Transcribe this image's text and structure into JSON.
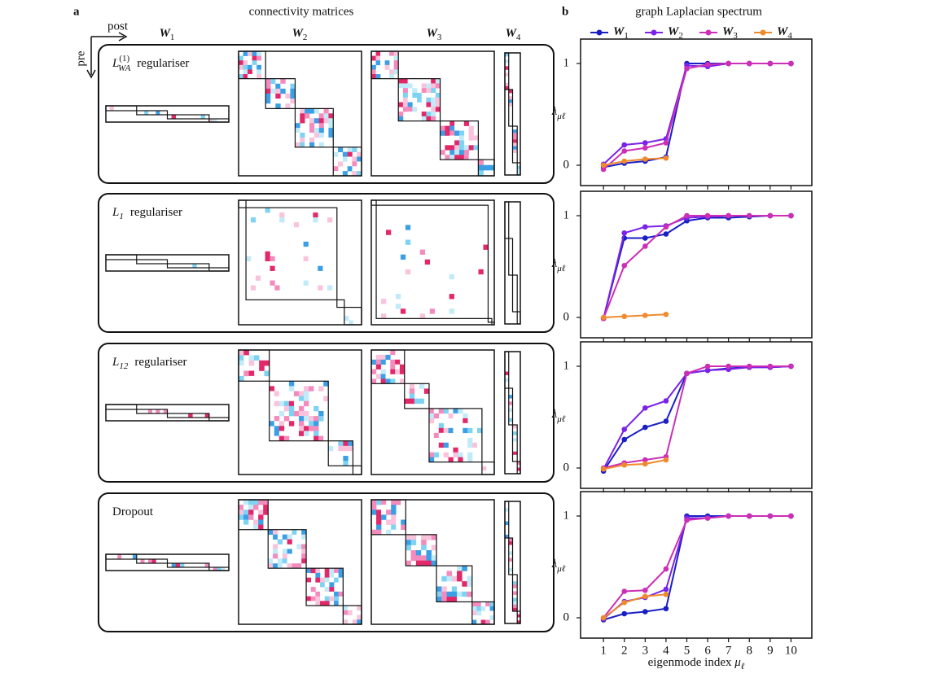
{
  "panel_a": {
    "label": "a",
    "title": "connectivity matrices",
    "post": "post",
    "pre": "pre",
    "columns": [
      "W1",
      "W2",
      "W3",
      "W4"
    ],
    "rows": [
      {
        "symbol": "L",
        "sup": "(1)",
        "sub": "WA",
        "text": "regulariser"
      },
      {
        "symbol": "L",
        "sub": "1",
        "text": "regulariser"
      },
      {
        "symbol": "L",
        "sub": "12",
        "text": "regulariser"
      },
      {
        "text": "Dropout"
      }
    ]
  },
  "chart_data": {
    "type": "line",
    "label": "b",
    "title": "graph Laplacian spectrum",
    "xlabel": "eigenmode index μℓ",
    "ylabel": "λμℓ",
    "x": [
      1,
      2,
      3,
      4,
      5,
      6,
      7,
      8,
      9,
      10
    ],
    "xlim": [
      -0.1,
      11
    ],
    "xticks": [
      1,
      2,
      3,
      4,
      5,
      6,
      7,
      8,
      9,
      10
    ],
    "ylim": [
      -0.2,
      1.24
    ],
    "yticks": [
      0,
      1
    ],
    "series": [
      {
        "name": "W1",
        "color": "#1a1fc4",
        "values": [
          [
            -0.02,
            0.02,
            0.04,
            0.08,
            1.0,
            1.0,
            1.0,
            1.0,
            1.0,
            1.0
          ],
          [
            -0.01,
            0.78,
            0.78,
            0.82,
            0.95,
            0.98,
            0.98,
            0.99,
            1.0,
            1.0
          ],
          [
            -0.03,
            0.28,
            0.4,
            0.46,
            0.93,
            0.96,
            0.98,
            0.99,
            0.99,
            1.0
          ],
          [
            -0.02,
            0.04,
            0.06,
            0.09,
            1.0,
            1.0,
            1.0,
            1.0,
            1.0,
            1.0
          ]
        ]
      },
      {
        "name": "W2",
        "color": "#7b22e8",
        "values": [
          [
            0.01,
            0.2,
            0.22,
            0.26,
            0.98,
            0.97,
            1.0,
            1.0,
            1.0,
            1.0
          ],
          [
            -0.01,
            0.83,
            0.89,
            0.9,
            0.98,
            0.99,
            1.0,
            1.0,
            1.0,
            1.0
          ],
          [
            -0.01,
            0.38,
            0.59,
            0.66,
            0.93,
            0.96,
            0.97,
            0.99,
            0.99,
            1.0
          ],
          [
            -0.01,
            0.16,
            0.2,
            0.28,
            0.98,
            0.98,
            1.0,
            1.0,
            1.0,
            1.0
          ]
        ]
      },
      {
        "name": "W3",
        "color": "#cc2fb5",
        "values": [
          [
            -0.04,
            0.14,
            0.17,
            0.22,
            0.95,
            0.99,
            1.0,
            1.0,
            1.0,
            1.0
          ],
          [
            -0.01,
            0.51,
            0.7,
            0.89,
            1.0,
            1.0,
            1.0,
            1.0,
            1.0,
            1.0
          ],
          [
            0.0,
            0.05,
            0.08,
            0.11,
            0.93,
            1.0,
            1.0,
            1.0,
            1.0,
            1.0
          ],
          [
            0.0,
            0.26,
            0.27,
            0.48,
            0.96,
            0.98,
            1.0,
            1.0,
            1.0,
            1.0
          ]
        ]
      },
      {
        "name": "W4",
        "color": "#f08a2e",
        "values": [
          [
            0.0,
            0.04,
            0.06,
            0.07,
            null,
            null,
            null,
            null,
            null,
            null
          ],
          [
            0.0,
            0.01,
            0.02,
            0.03,
            null,
            null,
            null,
            null,
            null,
            null
          ],
          [
            -0.01,
            0.03,
            0.04,
            0.08,
            null,
            null,
            null,
            null,
            null,
            null
          ],
          [
            0.0,
            0.15,
            0.21,
            0.23,
            null,
            null,
            null,
            null,
            null,
            null
          ]
        ]
      }
    ]
  }
}
